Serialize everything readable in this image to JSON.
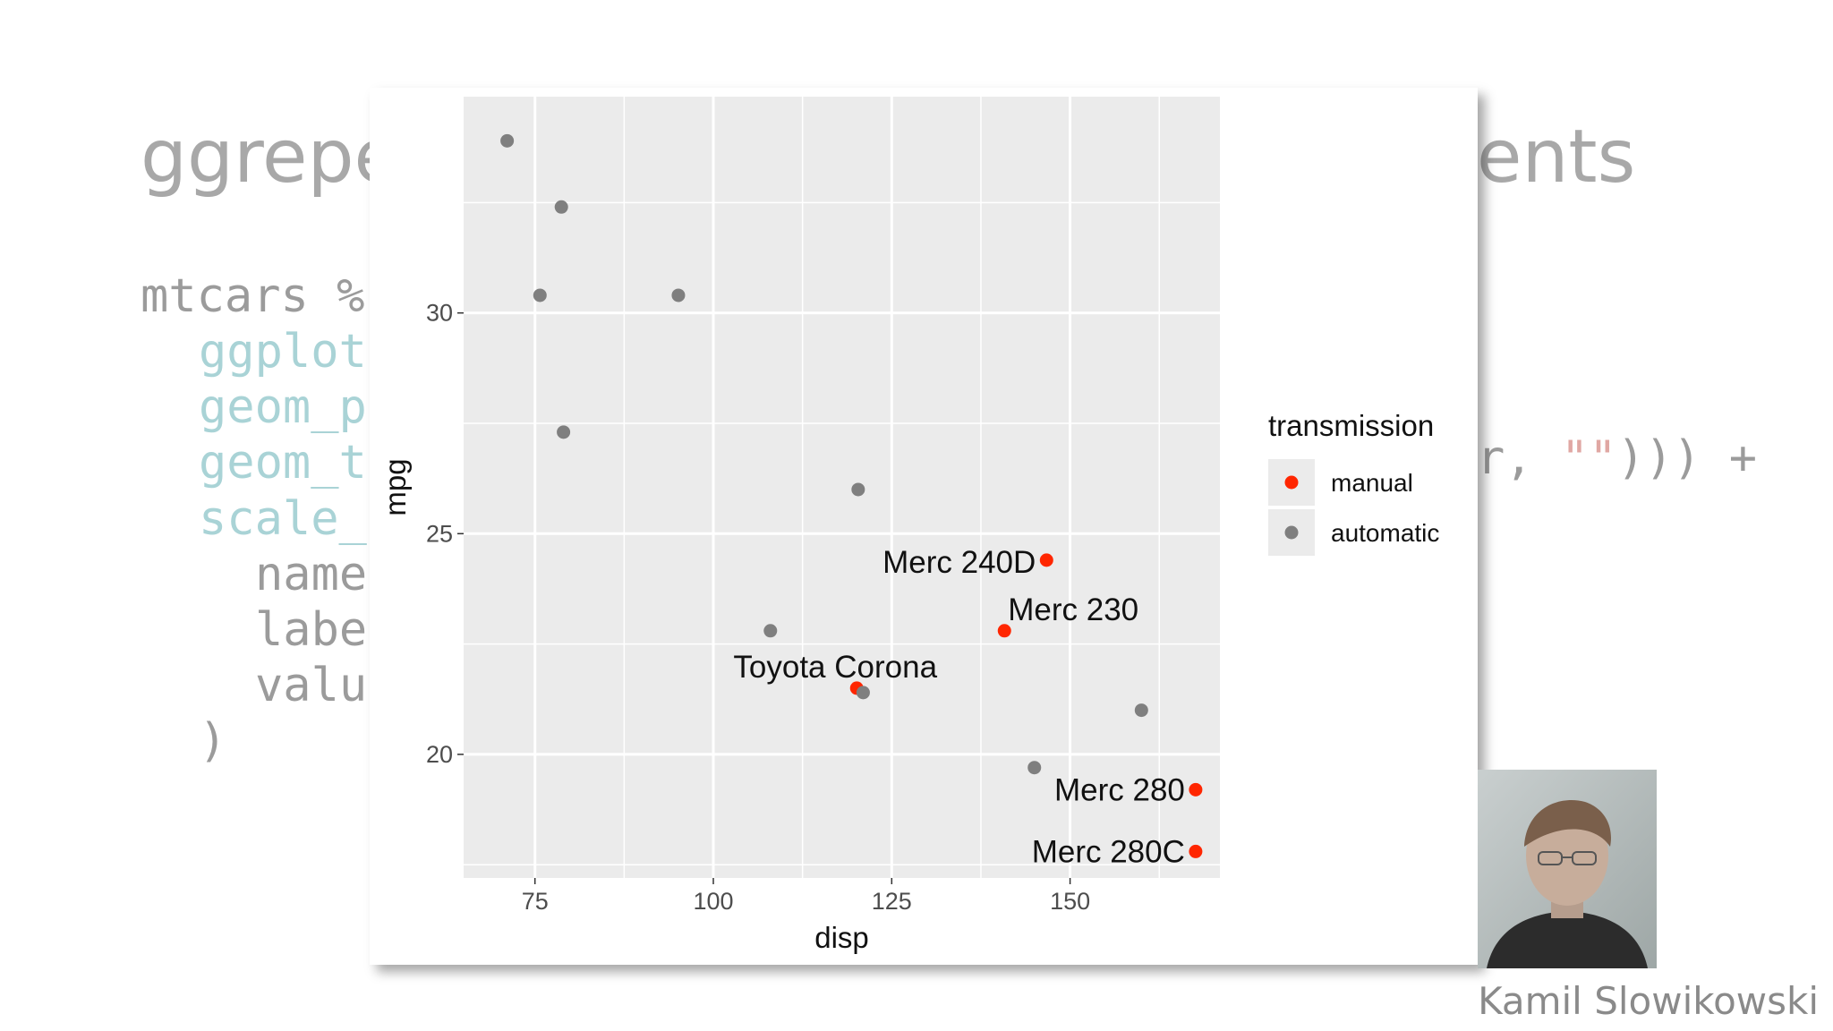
{
  "slide": {
    "title_left": "ggrepe",
    "title_right": "ents",
    "code_lines": [
      {
        "text": "mtcars %",
        "style": "gray"
      },
      {
        "text": "ggplot",
        "style": "teal"
      },
      {
        "text": "geom_p",
        "style": "teal"
      },
      {
        "text": "geom_t",
        "style": "teal"
      },
      {
        "text": "scale_",
        "style": "teal"
      },
      {
        "text": "name",
        "style": "gray"
      },
      {
        "text": "labe",
        "style": "gray"
      },
      {
        "text": "valu",
        "style": "gray"
      },
      {
        "text": ")",
        "style": "gray"
      }
    ],
    "code_right_a": "r, ",
    "code_right_b": "\"\"",
    "code_right_c": "))) +",
    "speaker_name": "Kamil Slowikowski"
  },
  "colors": {
    "panel_bg": "#ebebeb",
    "grid": "#ffffff",
    "manual": "#ff2600",
    "automatic": "#7f7f7f"
  },
  "chart_data": {
    "type": "scatter",
    "xlabel": "disp",
    "ylabel": "mpg",
    "xlim": [
      65,
      171
    ],
    "ylim": [
      17.2,
      34.9
    ],
    "x_ticks": [
      75,
      100,
      125,
      150
    ],
    "y_ticks": [
      20,
      25,
      30
    ],
    "grid": true,
    "legend": {
      "title": "transmission",
      "position": "right",
      "entries": [
        {
          "label": "manual",
          "color": "#ff2600"
        },
        {
          "label": "automatic",
          "color": "#7f7f7f"
        }
      ]
    },
    "series": [
      {
        "name": "manual",
        "color": "#ff2600",
        "points": [
          {
            "x": 146.7,
            "y": 24.4,
            "label": "Merc 240D"
          },
          {
            "x": 140.8,
            "y": 22.8,
            "label": "Merc 230"
          },
          {
            "x": 120.1,
            "y": 21.5,
            "label": "Toyota Corona"
          },
          {
            "x": 167.6,
            "y": 19.2,
            "label": "Merc 280"
          },
          {
            "x": 167.6,
            "y": 17.8,
            "label": "Merc 280C"
          }
        ]
      },
      {
        "name": "automatic",
        "color": "#7f7f7f",
        "points": [
          {
            "x": 71.1,
            "y": 33.9
          },
          {
            "x": 78.7,
            "y": 32.4
          },
          {
            "x": 75.7,
            "y": 30.4
          },
          {
            "x": 95.1,
            "y": 30.4
          },
          {
            "x": 79.0,
            "y": 27.3
          },
          {
            "x": 120.3,
            "y": 26.0
          },
          {
            "x": 108.0,
            "y": 22.8
          },
          {
            "x": 121.0,
            "y": 21.4
          },
          {
            "x": 160.0,
            "y": 21.0
          },
          {
            "x": 145.0,
            "y": 19.7
          }
        ]
      }
    ]
  }
}
